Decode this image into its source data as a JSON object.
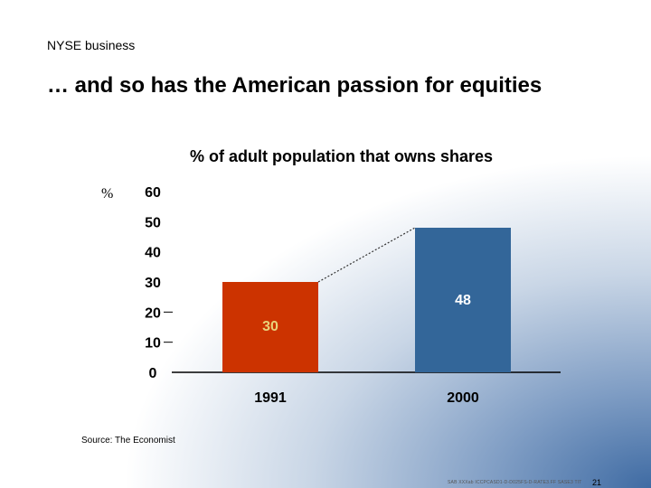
{
  "slide": {
    "section_label": "NYSE business",
    "title": "… and so has the American passion for equities",
    "source": "Source: The Economist",
    "footer_code": "SAB  XXXab   ICCPCASD1-D-D025FS-D-RATE3.FF  SASE3 TIT",
    "page_number": "21"
  },
  "chart_data": {
    "type": "bar",
    "title": "% of adult population that owns shares",
    "unit_label": "%",
    "categories": [
      "1991",
      "2000"
    ],
    "values": [
      30,
      48
    ],
    "bar_colors": [
      "#cc3300",
      "#336699"
    ],
    "ylim": [
      0,
      60
    ],
    "yticks": [
      0,
      10,
      20,
      30,
      40,
      50,
      60
    ],
    "grid": false,
    "connector": "dotted line between bar tops"
  }
}
